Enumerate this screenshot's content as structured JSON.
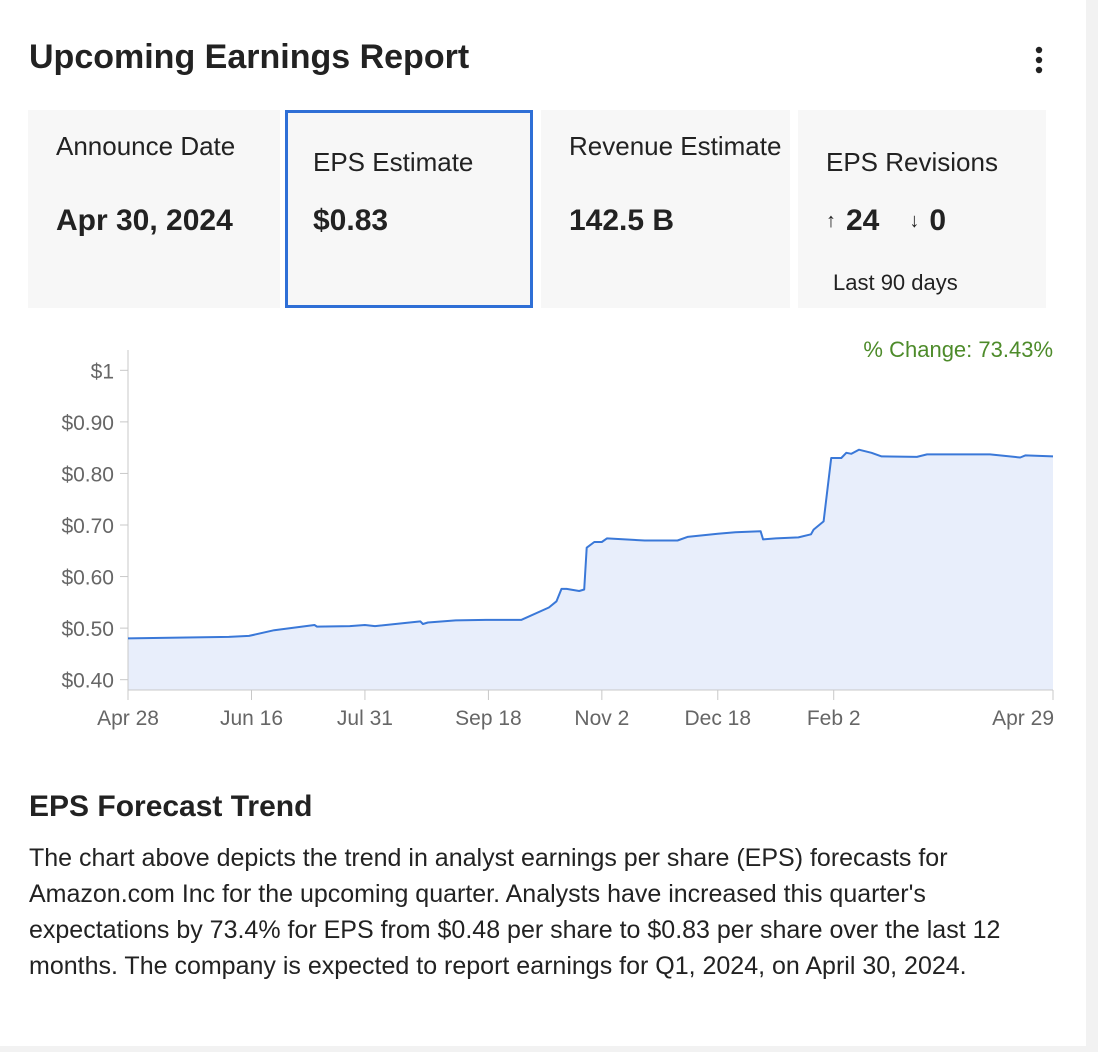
{
  "header": {
    "title": "Upcoming Earnings Report",
    "menu_icon": "more-vertical-icon"
  },
  "metrics": {
    "announce": {
      "label": "Announce Date",
      "value": "Apr 30, 2024"
    },
    "eps": {
      "label": "EPS Estimate",
      "value": "$0.83"
    },
    "revenue": {
      "label": "Revenue Estimate",
      "value": "142.5 B"
    },
    "revisions": {
      "label": "EPS Revisions",
      "up_icon": "arrow-up-icon",
      "up": "24",
      "down_icon": "arrow-down-icon",
      "down": "0",
      "sub": "Last 90 days"
    }
  },
  "colors": {
    "accent": "#2f6fd6",
    "line": "#3a78d8",
    "fill": "#e8eefb",
    "positive": "#4d8b2a"
  },
  "chart_data": {
    "type": "area",
    "change_label": "% Change: 73.43%",
    "y_ticks": [
      {
        "label": "$1",
        "value": 1.0
      },
      {
        "label": "$0.90",
        "value": 0.9
      },
      {
        "label": "$0.80",
        "value": 0.8
      },
      {
        "label": "$0.70",
        "value": 0.7
      },
      {
        "label": "$0.60",
        "value": 0.6
      },
      {
        "label": "$0.50",
        "value": 0.5
      },
      {
        "label": "$0.40",
        "value": 0.4
      }
    ],
    "x_ticks": [
      {
        "label": "Apr 28",
        "day": 0
      },
      {
        "label": "Jun 16",
        "day": 49
      },
      {
        "label": "Jul 31",
        "day": 94
      },
      {
        "label": "Sep 18",
        "day": 143
      },
      {
        "label": "Nov 2",
        "day": 188
      },
      {
        "label": "Dec 18",
        "day": 234
      },
      {
        "label": "Feb 2",
        "day": 280
      },
      {
        "label": "Apr 29",
        "day": 367
      }
    ],
    "ylim": [
      0.38,
      1.02
    ],
    "xlim": [
      0,
      367
    ],
    "series": [
      {
        "name": "EPS Estimate",
        "points": [
          [
            0,
            0.48
          ],
          [
            40,
            0.483
          ],
          [
            48,
            0.485
          ],
          [
            58,
            0.496
          ],
          [
            74,
            0.506
          ],
          [
            75,
            0.503
          ],
          [
            88,
            0.504
          ],
          [
            94,
            0.506
          ],
          [
            98,
            0.504
          ],
          [
            116,
            0.513
          ],
          [
            117,
            0.508
          ],
          [
            119,
            0.511
          ],
          [
            130,
            0.515
          ],
          [
            142,
            0.516
          ],
          [
            156,
            0.516
          ],
          [
            167,
            0.54
          ],
          [
            170,
            0.552
          ],
          [
            172,
            0.576
          ],
          [
            174,
            0.576
          ],
          [
            179,
            0.572
          ],
          [
            181,
            0.575
          ],
          [
            182,
            0.656
          ],
          [
            185,
            0.667
          ],
          [
            188,
            0.667
          ],
          [
            190,
            0.674
          ],
          [
            205,
            0.67
          ],
          [
            218,
            0.67
          ],
          [
            222,
            0.677
          ],
          [
            234,
            0.683
          ],
          [
            241,
            0.686
          ],
          [
            251,
            0.688
          ],
          [
            252,
            0.672
          ],
          [
            257,
            0.674
          ],
          [
            266,
            0.676
          ],
          [
            271,
            0.682
          ],
          [
            272,
            0.691
          ],
          [
            276,
            0.707
          ],
          [
            279,
            0.83
          ],
          [
            283,
            0.83
          ],
          [
            285,
            0.84
          ],
          [
            287,
            0.838
          ],
          [
            290,
            0.846
          ],
          [
            295,
            0.84
          ],
          [
            299,
            0.833
          ],
          [
            313,
            0.832
          ],
          [
            317,
            0.837
          ],
          [
            342,
            0.837
          ],
          [
            354,
            0.831
          ],
          [
            356,
            0.835
          ],
          [
            367,
            0.833
          ]
        ]
      }
    ]
  },
  "forecast": {
    "title": "EPS Forecast Trend",
    "text": "The chart above depicts the trend in analyst earnings per share (EPS) forecasts for Amazon.com Inc for the upcoming quarter. Analysts have increased this quarter's expectations by 73.4% for EPS from $0.48 per share to $0.83 per share over the last 12 months. The company is expected to report earnings for Q1, 2024, on April 30, 2024."
  }
}
